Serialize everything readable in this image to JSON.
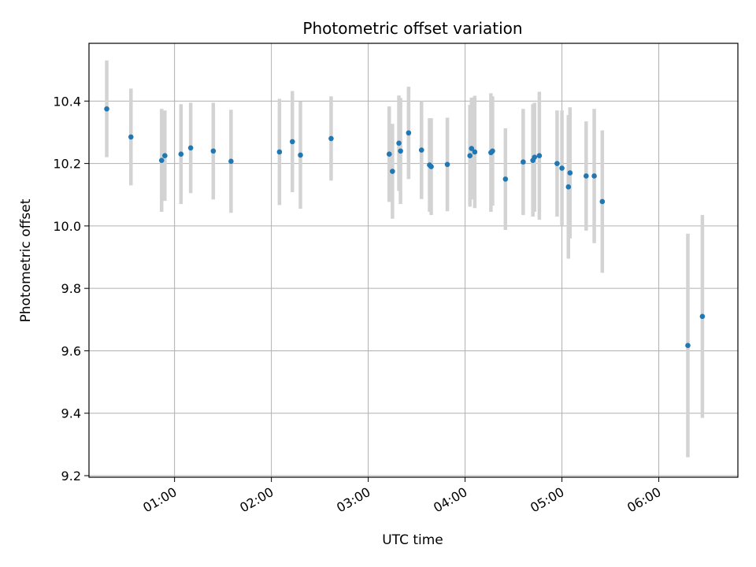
{
  "chart_data": {
    "type": "scatter",
    "title": "Photometric offset variation",
    "xlabel": "UTC time",
    "ylabel": "Photometric offset",
    "x_ticks": [
      "01:00",
      "02:00",
      "03:00",
      "04:00",
      "05:00",
      "06:00"
    ],
    "y_ticks": [
      "9.2",
      "9.4",
      "9.6",
      "9.8",
      "10.0",
      "10.2",
      "10.4"
    ],
    "xlim": [
      "00:07",
      "06:49"
    ],
    "ylim": [
      9.195,
      10.585
    ],
    "grid": true,
    "colors": {
      "point": "#1f77b4",
      "errorbar": "#d3d3d3",
      "grid": "#b0b0b0"
    },
    "points": [
      {
        "x": "00:18",
        "y": 10.375,
        "err": 0.155
      },
      {
        "x": "00:33",
        "y": 10.285,
        "err": 0.155
      },
      {
        "x": "00:52",
        "y": 10.21,
        "err": 0.165
      },
      {
        "x": "00:54",
        "y": 10.225,
        "err": 0.145
      },
      {
        "x": "01:04",
        "y": 10.23,
        "err": 0.16
      },
      {
        "x": "01:10",
        "y": 10.25,
        "err": 0.145
      },
      {
        "x": "01:24",
        "y": 10.24,
        "err": 0.155
      },
      {
        "x": "01:35",
        "y": 10.207,
        "err": 0.165
      },
      {
        "x": "02:05",
        "y": 10.237,
        "err": 0.17
      },
      {
        "x": "02:13",
        "y": 10.27,
        "err": 0.162
      },
      {
        "x": "02:18",
        "y": 10.227,
        "err": 0.172
      },
      {
        "x": "02:37",
        "y": 10.28,
        "err": 0.135
      },
      {
        "x": "03:13",
        "y": 10.23,
        "err": 0.153
      },
      {
        "x": "03:15",
        "y": 10.175,
        "err": 0.152
      },
      {
        "x": "03:19",
        "y": 10.265,
        "err": 0.153
      },
      {
        "x": "03:20",
        "y": 10.24,
        "err": 0.17
      },
      {
        "x": "03:25",
        "y": 10.298,
        "err": 0.148
      },
      {
        "x": "03:33",
        "y": 10.243,
        "err": 0.157
      },
      {
        "x": "03:38",
        "y": 10.195,
        "err": 0.15
      },
      {
        "x": "03:39",
        "y": 10.19,
        "err": 0.155
      },
      {
        "x": "03:49",
        "y": 10.197,
        "err": 0.15
      },
      {
        "x": "04:03",
        "y": 10.225,
        "err": 0.163
      },
      {
        "x": "04:04",
        "y": 10.248,
        "err": 0.163
      },
      {
        "x": "04:06",
        "y": 10.237,
        "err": 0.18
      },
      {
        "x": "04:16",
        "y": 10.235,
        "err": 0.19
      },
      {
        "x": "04:17",
        "y": 10.24,
        "err": 0.175
      },
      {
        "x": "04:25",
        "y": 10.15,
        "err": 0.163
      },
      {
        "x": "04:36",
        "y": 10.205,
        "err": 0.17
      },
      {
        "x": "04:42",
        "y": 10.21,
        "err": 0.18
      },
      {
        "x": "04:43",
        "y": 10.22,
        "err": 0.175
      },
      {
        "x": "04:46",
        "y": 10.225,
        "err": 0.205
      },
      {
        "x": "04:57",
        "y": 10.2,
        "err": 0.17
      },
      {
        "x": "05:00",
        "y": 10.185,
        "err": 0.185
      },
      {
        "x": "05:04",
        "y": 10.125,
        "err": 0.23
      },
      {
        "x": "05:05",
        "y": 10.17,
        "err": 0.21
      },
      {
        "x": "05:15",
        "y": 10.16,
        "err": 0.175
      },
      {
        "x": "05:20",
        "y": 10.16,
        "err": 0.215
      },
      {
        "x": "05:25",
        "y": 10.078,
        "err": 0.228
      },
      {
        "x": "06:18",
        "y": 9.617,
        "err": 0.358
      },
      {
        "x": "06:27",
        "y": 9.71,
        "err": 0.325
      }
    ]
  }
}
